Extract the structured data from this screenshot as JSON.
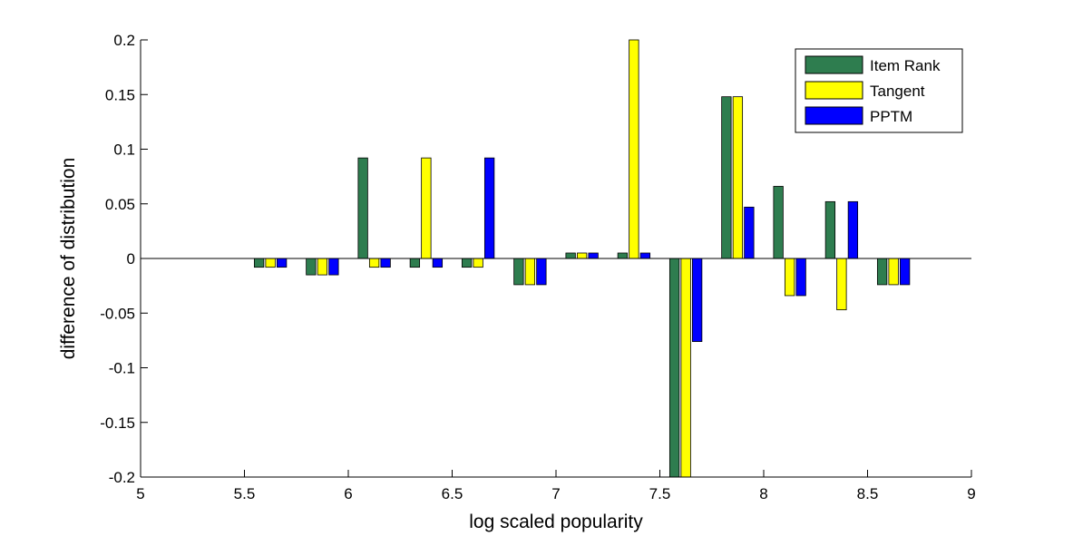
{
  "chart_data": {
    "type": "bar",
    "title": "",
    "xlabel": "log scaled popularity",
    "ylabel": "difference of distribution",
    "xlim": [
      5,
      9
    ],
    "ylim": [
      -0.2,
      0.2
    ],
    "xticks": [
      "5",
      "5.5",
      "6",
      "6.5",
      "7",
      "7.5",
      "8",
      "8.5",
      "9"
    ],
    "yticks": [
      "-0.2",
      "-0.15",
      "-0.1",
      "-0.05",
      "0",
      "0.05",
      "0.1",
      "0.15",
      "0.2"
    ],
    "x": [
      5.625,
      5.875,
      6.125,
      6.375,
      6.625,
      6.875,
      7.125,
      7.375,
      7.625,
      7.875,
      8.125,
      8.375,
      8.625
    ],
    "series": [
      {
        "name": "Item Rank",
        "color": "#2e7d4f",
        "values": [
          -0.008,
          -0.015,
          0.092,
          -0.008,
          -0.008,
          -0.024,
          0.005,
          0.005,
          -0.2,
          0.148,
          0.066,
          0.052,
          -0.024
        ]
      },
      {
        "name": "Tangent",
        "color": "#ffff00",
        "values": [
          -0.008,
          -0.015,
          -0.008,
          0.092,
          -0.008,
          -0.024,
          0.005,
          0.2,
          -0.2,
          0.148,
          -0.034,
          -0.047,
          -0.024
        ]
      },
      {
        "name": "PPTM",
        "color": "#0000ff",
        "values": [
          -0.008,
          -0.015,
          -0.008,
          -0.008,
          0.092,
          -0.024,
          0.005,
          0.005,
          -0.076,
          0.047,
          -0.034,
          0.052,
          -0.024
        ]
      }
    ],
    "grid": false,
    "legend_position": "top-right"
  }
}
